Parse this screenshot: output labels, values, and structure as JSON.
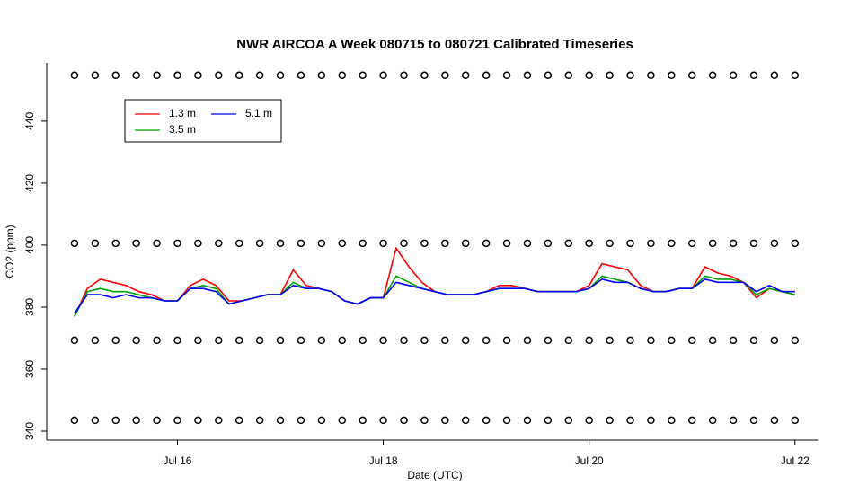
{
  "chart_data": {
    "type": "line",
    "title": "NWR AIRCOA A  Week 080715 to 080721  Calibrated Timeseries",
    "x_label": "Date (UTC)",
    "y_label": "CO2 (ppm)",
    "xlim": [
      14.73,
      22.22
    ],
    "ylim": [
      337.1,
      458.8
    ],
    "xticks": [
      {
        "value": 16,
        "label": "Jul 16"
      },
      {
        "value": 18,
        "label": "Jul 18"
      },
      {
        "value": 20,
        "label": "Jul 20"
      },
      {
        "value": 22,
        "label": "Jul 22"
      }
    ],
    "yticks": [
      340,
      360,
      380,
      400,
      420,
      440
    ],
    "x": [
      15.0,
      15.125,
      15.25,
      15.375,
      15.5,
      15.625,
      15.75,
      15.875,
      16.0,
      16.125,
      16.25,
      16.375,
      16.5,
      16.625,
      16.75,
      16.875,
      17.0,
      17.125,
      17.25,
      17.375,
      17.5,
      17.625,
      17.75,
      17.875,
      18.0,
      18.125,
      18.25,
      18.375,
      18.5,
      18.625,
      18.75,
      18.875,
      19.0,
      19.125,
      19.25,
      19.375,
      19.5,
      19.625,
      19.75,
      19.875,
      20.0,
      20.125,
      20.25,
      20.375,
      20.5,
      20.625,
      20.75,
      20.875,
      21.0,
      21.125,
      21.25,
      21.375,
      21.5,
      21.625,
      21.75,
      21.875,
      22.0
    ],
    "series": [
      {
        "name": "1.3 m",
        "color": "#ff0000",
        "values": [
          377,
          386,
          389,
          388,
          387,
          385,
          384,
          382,
          382,
          387,
          389,
          387,
          382,
          382,
          383,
          384,
          384,
          392,
          387,
          386,
          385,
          382,
          381,
          383,
          383,
          399,
          393,
          388,
          385,
          384,
          384,
          384,
          385,
          387,
          387,
          386,
          385,
          385,
          385,
          385,
          387,
          394,
          393,
          392,
          387,
          385,
          385,
          386,
          386,
          393,
          391,
          390,
          388,
          383,
          386,
          385,
          385
        ]
      },
      {
        "name": "3.5 m",
        "color": "#00a000",
        "values": [
          377,
          385,
          386,
          385,
          385,
          384,
          383,
          382,
          382,
          386,
          387,
          386,
          381,
          382,
          383,
          384,
          384,
          388,
          386,
          386,
          385,
          382,
          381,
          383,
          383,
          390,
          388,
          386,
          385,
          384,
          384,
          384,
          385,
          386,
          386,
          386,
          385,
          385,
          385,
          385,
          386,
          390,
          389,
          388,
          386,
          385,
          385,
          386,
          386,
          390,
          389,
          389,
          388,
          384,
          386,
          385,
          384
        ]
      },
      {
        "name": "5.1 m",
        "color": "#0000ff",
        "values": [
          378,
          384,
          384,
          383,
          384,
          383,
          383,
          382,
          382,
          386,
          386,
          385,
          381,
          382,
          383,
          384,
          384,
          387,
          386,
          386,
          385,
          382,
          381,
          383,
          383,
          388,
          387,
          386,
          385,
          384,
          384,
          384,
          385,
          386,
          386,
          386,
          385,
          385,
          385,
          385,
          386,
          389,
          388,
          388,
          386,
          385,
          385,
          386,
          386,
          389,
          388,
          388,
          388,
          385,
          387,
          385,
          385
        ]
      },
      {
        "type": "scatter",
        "color": "#000000",
        "x": [
          15.0,
          15.2,
          15.4,
          15.6,
          15.8,
          16.0,
          16.2,
          16.4,
          16.6,
          16.8,
          17.0,
          17.2,
          17.4,
          17.6,
          17.8,
          18.0,
          18.2,
          18.4,
          18.6,
          18.8,
          19.0,
          19.2,
          19.4,
          19.6,
          19.8,
          20.0,
          20.2,
          20.4,
          20.6,
          20.8,
          21.0,
          21.2,
          21.4,
          21.6,
          21.8,
          22.0
        ],
        "values": [
          343.5,
          343.5,
          343.5,
          343.5,
          343.5,
          343.5,
          343.5,
          343.5,
          343.5,
          343.5,
          343.5,
          343.5,
          343.5,
          343.5,
          343.5,
          343.5,
          343.5,
          343.5,
          343.5,
          343.5,
          343.5,
          343.5,
          343.5,
          343.5,
          343.5,
          343.5,
          343.5,
          343.5,
          343.5,
          343.5,
          343.5,
          343.5,
          343.5,
          343.5,
          343.5,
          343.5
        ]
      },
      {
        "type": "scatter",
        "color": "#000000",
        "x": [
          15.0,
          15.2,
          15.4,
          15.6,
          15.8,
          16.0,
          16.2,
          16.4,
          16.6,
          16.8,
          17.0,
          17.2,
          17.4,
          17.6,
          17.8,
          18.0,
          18.2,
          18.4,
          18.6,
          18.8,
          19.0,
          19.2,
          19.4,
          19.6,
          19.8,
          20.0,
          20.2,
          20.4,
          20.6,
          20.8,
          21.0,
          21.2,
          21.4,
          21.6,
          21.8,
          22.0
        ],
        "values": [
          369.3,
          369.3,
          369.3,
          369.3,
          369.3,
          369.3,
          369.3,
          369.3,
          369.3,
          369.3,
          369.3,
          369.3,
          369.3,
          369.3,
          369.3,
          369.3,
          369.3,
          369.3,
          369.3,
          369.3,
          369.3,
          369.3,
          369.3,
          369.3,
          369.3,
          369.3,
          369.3,
          369.3,
          369.3,
          369.3,
          369.3,
          369.3,
          369.3,
          369.3,
          369.3,
          369.3
        ]
      },
      {
        "type": "scatter",
        "color": "#000000",
        "x": [
          15.0,
          15.2,
          15.4,
          15.6,
          15.8,
          16.0,
          16.2,
          16.4,
          16.6,
          16.8,
          17.0,
          17.2,
          17.4,
          17.6,
          17.8,
          18.0,
          18.2,
          18.4,
          18.6,
          18.8,
          19.0,
          19.2,
          19.4,
          19.6,
          19.8,
          20.0,
          20.2,
          20.4,
          20.6,
          20.8,
          21.0,
          21.2,
          21.4,
          21.6,
          21.8,
          22.0
        ],
        "values": [
          400.6,
          400.6,
          400.6,
          400.6,
          400.6,
          400.6,
          400.6,
          400.6,
          400.6,
          400.6,
          400.6,
          400.6,
          400.6,
          400.6,
          400.6,
          400.6,
          400.6,
          400.6,
          400.6,
          400.6,
          400.6,
          400.6,
          400.6,
          400.6,
          400.6,
          400.6,
          400.6,
          400.6,
          400.6,
          400.6,
          400.6,
          400.6,
          400.6,
          400.6,
          400.6,
          400.6
        ]
      },
      {
        "type": "scatter",
        "color": "#000000",
        "x": [
          15.0,
          15.2,
          15.4,
          15.6,
          15.8,
          16.0,
          16.2,
          16.4,
          16.6,
          16.8,
          17.0,
          17.2,
          17.4,
          17.6,
          17.8,
          18.0,
          18.2,
          18.4,
          18.6,
          18.8,
          19.0,
          19.2,
          19.4,
          19.6,
          19.8,
          20.0,
          20.2,
          20.4,
          20.6,
          20.8,
          21.0,
          21.2,
          21.4,
          21.6,
          21.8,
          22.0
        ],
        "values": [
          454.8,
          454.8,
          454.8,
          454.8,
          454.8,
          454.8,
          454.8,
          454.8,
          454.8,
          454.8,
          454.8,
          454.8,
          454.8,
          454.8,
          454.8,
          454.8,
          454.8,
          454.8,
          454.8,
          454.8,
          454.8,
          454.8,
          454.8,
          454.8,
          454.8,
          454.8,
          454.8,
          454.8,
          454.8,
          454.8,
          454.8,
          454.8,
          454.8,
          454.8,
          454.8,
          454.8
        ]
      }
    ]
  }
}
